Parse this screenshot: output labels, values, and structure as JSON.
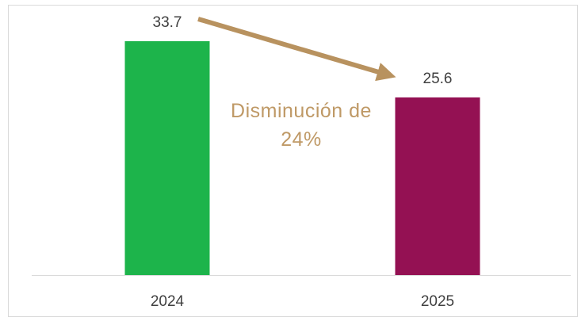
{
  "chart_data": {
    "type": "bar",
    "categories": [
      "2024",
      "2025"
    ],
    "values": [
      33.7,
      25.6
    ],
    "colors": [
      "#1db44b",
      "#941153"
    ],
    "ylim": [
      0,
      35
    ],
    "annotation": "Disminución de 24%"
  }
}
